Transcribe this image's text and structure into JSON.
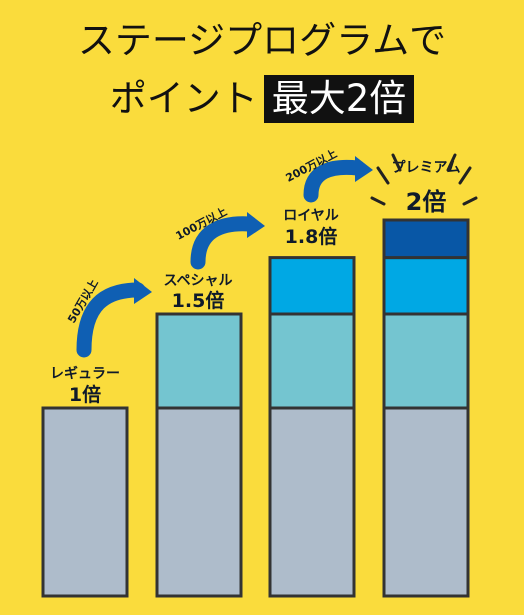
{
  "headline": {
    "line1": "ステージプログラムで",
    "line2_prefix": "ポイント",
    "line2_highlight": "最大2倍"
  },
  "colors": {
    "background": "#fadc3c",
    "segment_base": "#aebccb",
    "segment_1_5": "#74c5d0",
    "segment_1_8": "#00a8e4",
    "segment_2": "#0857a6",
    "arrow": "#0f5fb3",
    "outline": "#333333"
  },
  "chart_data": {
    "type": "bar",
    "stacked": true,
    "categories": [
      "レギュラー",
      "スペシャル",
      "ロイヤル",
      "プレミアム"
    ],
    "multiplier_labels": [
      "1倍",
      "1.5倍",
      "1.8倍",
      "2倍"
    ],
    "values": [
      1,
      1.5,
      1.8,
      2
    ],
    "series": [
      {
        "values": [
          1,
          1,
          1,
          1
        ]
      },
      {
        "values": [
          0,
          0.5,
          0.5,
          0.5
        ]
      },
      {
        "values": [
          0,
          0,
          0.3,
          0.3
        ]
      },
      {
        "values": [
          0,
          0,
          0,
          0.2
        ]
      }
    ],
    "transitions": [
      "50万以上",
      "100万以上",
      "200万以上"
    ],
    "ylim": [
      0,
      2.05
    ],
    "grid": false,
    "legend": "none"
  }
}
